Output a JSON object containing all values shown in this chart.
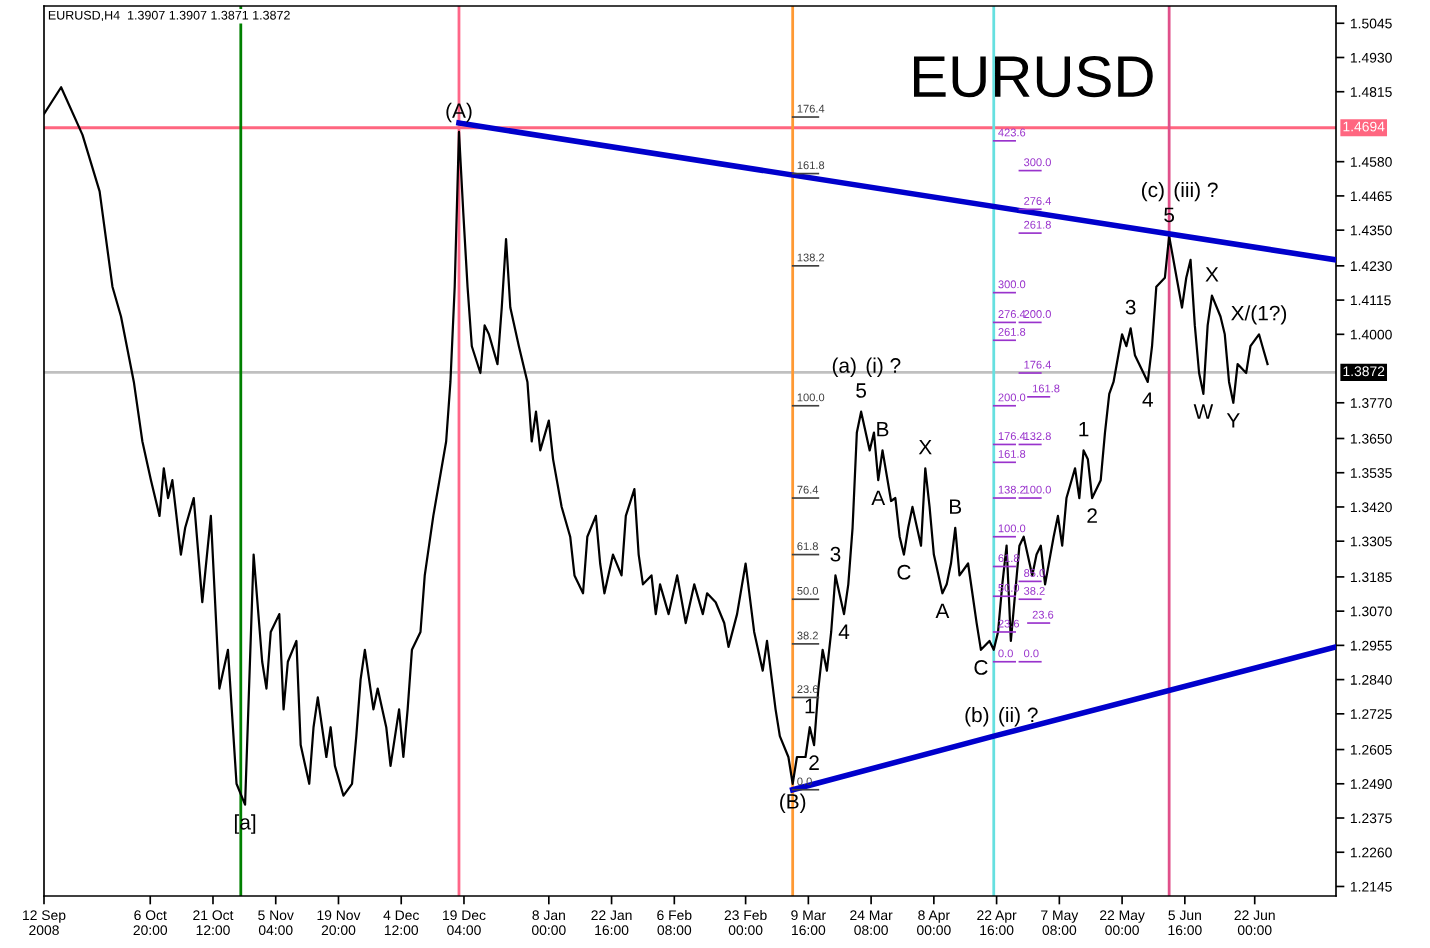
{
  "chart_data": {
    "type": "line",
    "title": "EURUSD",
    "subtitle": "EURUSD,H4  1.3907 1.3907 1.3871 1.3872",
    "series": [
      {
        "color": "#000000",
        "x": [
          "2008-09-12",
          "2008-09-16",
          "2008-09-21",
          "2008-09-25",
          "2008-09-28",
          "2008-09-30",
          "2008-10-03",
          "2008-10-05",
          "2008-10-07",
          "2008-10-09",
          "2008-10-10",
          "2008-10-11",
          "2008-10-12",
          "2008-10-14",
          "2008-10-15",
          "2008-10-17",
          "2008-10-19",
          "2008-10-21",
          "2008-10-23",
          "2008-10-25",
          "2008-10-27",
          "2008-10-29",
          "2008-10-31",
          "2008-11-02",
          "2008-11-03",
          "2008-11-04",
          "2008-11-06",
          "2008-11-07",
          "2008-11-08",
          "2008-11-10",
          "2008-11-11",
          "2008-11-13",
          "2008-11-14",
          "2008-11-15",
          "2008-11-17",
          "2008-11-18",
          "2008-11-19",
          "2008-11-21",
          "2008-11-23",
          "2008-11-24",
          "2008-11-25",
          "2008-11-26",
          "2008-11-28",
          "2008-11-29",
          "2008-12-01",
          "2008-12-02",
          "2008-12-04",
          "2008-12-05",
          "2008-12-06",
          "2008-12-07",
          "2008-12-09",
          "2008-12-10",
          "2008-12-12",
          "2008-12-15",
          "2008-12-16",
          "2008-12-17",
          "2008-12-18",
          "2008-12-19",
          "2008-12-20",
          "2008-12-21",
          "2008-12-23",
          "2008-12-24",
          "2008-12-25",
          "2008-12-27",
          "2008-12-28",
          "2008-12-29",
          "2008-12-30",
          "2009-01-01",
          "2009-01-03",
          "2009-01-04",
          "2009-01-05",
          "2009-01-06",
          "2009-01-08",
          "2009-01-09",
          "2009-01-11",
          "2009-01-13",
          "2009-01-14",
          "2009-01-16",
          "2009-01-17",
          "2009-01-19",
          "2009-01-20",
          "2009-01-21",
          "2009-01-23",
          "2009-01-25",
          "2009-01-26",
          "2009-01-28",
          "2009-01-29",
          "2009-01-30",
          "2009-02-01",
          "2009-02-02",
          "2009-02-03",
          "2009-02-05",
          "2009-02-07",
          "2009-02-09",
          "2009-02-11",
          "2009-02-13",
          "2009-02-14",
          "2009-02-16",
          "2009-02-18",
          "2009-02-19",
          "2009-02-21",
          "2009-02-23",
          "2009-02-25",
          "2009-02-27",
          "2009-02-28",
          "2009-03-02",
          "2009-03-03",
          "2009-03-05",
          "2009-03-06",
          "2009-03-07",
          "2009-03-09",
          "2009-03-10",
          "2009-03-11",
          "2009-03-12",
          "2009-03-13",
          "2009-03-14",
          "2009-03-15",
          "2009-03-16",
          "2009-03-18",
          "2009-03-19",
          "2009-03-20",
          "2009-03-21",
          "2009-03-22",
          "2009-03-24",
          "2009-03-25",
          "2009-03-26",
          "2009-03-27",
          "2009-03-29",
          "2009-03-30",
          "2009-03-31",
          "2009-04-01",
          "2009-04-02",
          "2009-04-03",
          "2009-04-05",
          "2009-04-06",
          "2009-04-07",
          "2009-04-08",
          "2009-04-10",
          "2009-04-11",
          "2009-04-12",
          "2009-04-13",
          "2009-04-14",
          "2009-04-16",
          "2009-04-17",
          "2009-04-18",
          "2009-04-19",
          "2009-04-21",
          "2009-04-22",
          "2009-04-23",
          "2009-04-24",
          "2009-04-25",
          "2009-04-26",
          "2009-04-27",
          "2009-04-28",
          "2009-04-29",
          "2009-05-01",
          "2009-05-02",
          "2009-05-03",
          "2009-05-04",
          "2009-05-06",
          "2009-05-07",
          "2009-05-08",
          "2009-05-09",
          "2009-05-11",
          "2009-05-12",
          "2009-05-13",
          "2009-05-14",
          "2009-05-15",
          "2009-05-17",
          "2009-05-18",
          "2009-05-19",
          "2009-05-20",
          "2009-05-22",
          "2009-05-23",
          "2009-05-24",
          "2009-05-25",
          "2009-05-27",
          "2009-05-28",
          "2009-05-29",
          "2009-05-30",
          "2009-06-01",
          "2009-06-02",
          "2009-06-05",
          "2009-06-06",
          "2009-06-07",
          "2009-06-08",
          "2009-06-09",
          "2009-06-10",
          "2009-06-11",
          "2009-06-12",
          "2009-06-14",
          "2009-06-15",
          "2009-06-16",
          "2009-06-17",
          "2009-06-18",
          "2009-06-20",
          "2009-06-21",
          "2009-06-23",
          "2009-06-24",
          "2009-06-25"
        ],
        "values": [
          1.474,
          1.483,
          1.467,
          1.448,
          1.416,
          1.406,
          1.384,
          1.364,
          1.351,
          1.339,
          1.355,
          1.345,
          1.351,
          1.326,
          1.335,
          1.345,
          1.31,
          1.339,
          1.281,
          1.294,
          1.249,
          1.242,
          1.326,
          1.29,
          1.281,
          1.3,
          1.306,
          1.274,
          1.29,
          1.297,
          1.262,
          1.249,
          1.268,
          1.278,
          1.258,
          1.268,
          1.255,
          1.245,
          1.249,
          1.265,
          1.284,
          1.294,
          1.274,
          1.281,
          1.268,
          1.255,
          1.274,
          1.258,
          1.274,
          1.294,
          1.3,
          1.319,
          1.339,
          1.364,
          1.384,
          1.416,
          1.468,
          1.441,
          1.416,
          1.396,
          1.387,
          1.403,
          1.4,
          1.39,
          1.409,
          1.432,
          1.409,
          1.396,
          1.384,
          1.364,
          1.374,
          1.361,
          1.371,
          1.358,
          1.342,
          1.332,
          1.319,
          1.313,
          1.332,
          1.339,
          1.323,
          1.313,
          1.326,
          1.319,
          1.339,
          1.348,
          1.326,
          1.316,
          1.319,
          1.306,
          1.316,
          1.306,
          1.319,
          1.303,
          1.316,
          1.306,
          1.313,
          1.31,
          1.303,
          1.295,
          1.306,
          1.323,
          1.3,
          1.287,
          1.297,
          1.274,
          1.265,
          1.258,
          1.249,
          1.258,
          1.258,
          1.268,
          1.262,
          1.281,
          1.294,
          1.287,
          1.3,
          1.319,
          1.306,
          1.316,
          1.335,
          1.367,
          1.374,
          1.361,
          1.367,
          1.351,
          1.361,
          1.344,
          1.345,
          1.332,
          1.326,
          1.335,
          1.342,
          1.329,
          1.355,
          1.342,
          1.326,
          1.313,
          1.316,
          1.323,
          1.335,
          1.319,
          1.323,
          1.313,
          1.303,
          1.294,
          1.297,
          1.294,
          1.3,
          1.316,
          1.329,
          1.297,
          1.313,
          1.329,
          1.332,
          1.319,
          1.326,
          1.329,
          1.316,
          1.332,
          1.339,
          1.329,
          1.345,
          1.355,
          1.345,
          1.361,
          1.358,
          1.345,
          1.351,
          1.367,
          1.38,
          1.384,
          1.4,
          1.396,
          1.402,
          1.393,
          1.387,
          1.384,
          1.396,
          1.416,
          1.419,
          1.433,
          1.409,
          1.419,
          1.425,
          1.403,
          1.387,
          1.38,
          1.403,
          1.413,
          1.406,
          1.4,
          1.384,
          1.377,
          1.39,
          1.387,
          1.396,
          1.4,
          1.395,
          1.39
        ]
      },
      {
        "color": "#0000cc",
        "x": [
          "2008-12-18",
          "2009-07-11"
        ],
        "values": [
          1.471,
          1.425
        ]
      },
      {
        "color": "#0000cc",
        "x": [
          "2009-03-06",
          "2009-04-22",
          "2009-07-11"
        ],
        "values": [
          1.247,
          1.265,
          1.295
        ]
      },
      {
        "type": "line",
        "name": "176.4",
        "color": "#404040",
        "x": [
          "2009-03-06",
          "2009-03-12"
        ],
        "values": [
          1.473,
          1.473
        ]
      },
      {
        "type": "line",
        "name": "161.8",
        "color": "#404040",
        "x": [
          "2009-03-06",
          "2009-03-12"
        ],
        "values": [
          1.454,
          1.454
        ]
      },
      {
        "type": "line",
        "name": "138.2",
        "color": "#404040",
        "x": [
          "2009-03-06",
          "2009-03-12"
        ],
        "values": [
          1.423,
          1.423
        ]
      },
      {
        "type": "line",
        "name": "100.0",
        "color": "#404040",
        "x": [
          "2009-03-06",
          "2009-03-12"
        ],
        "values": [
          1.376,
          1.376
        ]
      },
      {
        "type": "line",
        "name": "76.4",
        "color": "#404040",
        "x": [
          "2009-03-06",
          "2009-03-12"
        ],
        "values": [
          1.345,
          1.345
        ]
      },
      {
        "type": "line",
        "name": "61.8",
        "color": "#404040",
        "x": [
          "2009-03-06",
          "2009-03-12"
        ],
        "values": [
          1.326,
          1.326
        ]
      },
      {
        "type": "line",
        "name": "50.0",
        "color": "#404040",
        "x": [
          "2009-03-06",
          "2009-03-12"
        ],
        "values": [
          1.311,
          1.311
        ]
      },
      {
        "type": "line",
        "name": "38.2",
        "color": "#404040",
        "x": [
          "2009-03-06",
          "2009-03-12"
        ],
        "values": [
          1.296,
          1.296
        ]
      },
      {
        "type": "line",
        "name": "23.6",
        "color": "#404040",
        "x": [
          "2009-03-06",
          "2009-03-12"
        ],
        "values": [
          1.278,
          1.278
        ]
      },
      {
        "type": "line",
        "name": "0.0",
        "color": "#404040",
        "x": [
          "2009-03-06",
          "2009-03-12"
        ],
        "values": [
          1.247,
          1.247
        ]
      },
      {
        "type": "line",
        "name": "423.6",
        "color": "#9933cc",
        "x": [
          "2009-04-22",
          "2009-04-27"
        ],
        "values": [
          1.465,
          1.465
        ]
      },
      {
        "type": "line",
        "name": "300.0",
        "color": "#9933cc",
        "x": [
          "2009-04-22",
          "2009-04-27"
        ],
        "values": [
          1.414,
          1.414
        ]
      },
      {
        "type": "line",
        "name": "276.4",
        "color": "#9933cc",
        "x": [
          "2009-04-22",
          "2009-04-27"
        ],
        "values": [
          1.404,
          1.404
        ]
      },
      {
        "type": "line",
        "name": "261.8",
        "color": "#9933cc",
        "x": [
          "2009-04-22",
          "2009-04-27"
        ],
        "values": [
          1.398,
          1.398
        ]
      },
      {
        "type": "line",
        "name": "200.0",
        "color": "#9933cc",
        "x": [
          "2009-04-22",
          "2009-04-27"
        ],
        "values": [
          1.376,
          1.376
        ]
      },
      {
        "type": "line",
        "name": "176.4",
        "color": "#9933cc",
        "x": [
          "2009-04-22",
          "2009-04-27"
        ],
        "values": [
          1.363,
          1.363
        ]
      },
      {
        "type": "line",
        "name": "161.8",
        "color": "#9933cc",
        "x": [
          "2009-04-22",
          "2009-04-27"
        ],
        "values": [
          1.357,
          1.357
        ]
      },
      {
        "type": "line",
        "name": "138.2",
        "color": "#9933cc",
        "x": [
          "2009-04-22",
          "2009-04-27"
        ],
        "values": [
          1.345,
          1.345
        ]
      },
      {
        "type": "line",
        "name": "100.0",
        "color": "#9933cc",
        "x": [
          "2009-04-22",
          "2009-04-27"
        ],
        "values": [
          1.332,
          1.332
        ]
      },
      {
        "type": "line",
        "name": "61.8",
        "color": "#9933cc",
        "x": [
          "2009-04-22",
          "2009-04-27"
        ],
        "values": [
          1.322,
          1.322
        ]
      },
      {
        "type": "line",
        "name": "50.0",
        "color": "#9933cc",
        "x": [
          "2009-04-22",
          "2009-04-27"
        ],
        "values": [
          1.312,
          1.312
        ]
      },
      {
        "type": "line",
        "name": "23.6",
        "color": "#9933cc",
        "x": [
          "2009-04-22",
          "2009-04-27"
        ],
        "values": [
          1.3,
          1.3
        ]
      },
      {
        "type": "line",
        "name": "0.0",
        "color": "#9933cc",
        "x": [
          "2009-04-22",
          "2009-04-27"
        ],
        "values": [
          1.29,
          1.29
        ]
      },
      {
        "type": "line",
        "name": "300.0",
        "color": "#9933cc",
        "x": [
          "2009-04-28",
          "2009-05-03"
        ],
        "values": [
          1.455,
          1.455
        ]
      },
      {
        "type": "line",
        "name": "276.4",
        "color": "#9933cc",
        "x": [
          "2009-04-28",
          "2009-05-03"
        ],
        "values": [
          1.442,
          1.442
        ]
      },
      {
        "type": "line",
        "name": "261.8",
        "color": "#9933cc",
        "x": [
          "2009-04-28",
          "2009-05-03"
        ],
        "values": [
          1.434,
          1.434
        ]
      },
      {
        "type": "line",
        "name": "200.0",
        "color": "#9933cc",
        "x": [
          "2009-04-28",
          "2009-05-03"
        ],
        "values": [
          1.404,
          1.404
        ]
      },
      {
        "type": "line",
        "name": "176.4",
        "color": "#9933cc",
        "x": [
          "2009-04-28",
          "2009-05-03"
        ],
        "values": [
          1.387,
          1.387
        ]
      },
      {
        "type": "line",
        "name": "161.8",
        "color": "#9933cc",
        "x": [
          "2009-04-30",
          "2009-05-05"
        ],
        "values": [
          1.379,
          1.379
        ]
      },
      {
        "type": "line",
        "name": "132.8",
        "color": "#9933cc",
        "x": [
          "2009-04-28",
          "2009-05-03"
        ],
        "values": [
          1.363,
          1.363
        ]
      },
      {
        "type": "line",
        "name": "100.0",
        "color": "#9933cc",
        "x": [
          "2009-04-28",
          "2009-05-03"
        ],
        "values": [
          1.345,
          1.345
        ]
      },
      {
        "type": "line",
        "name": "85.0",
        "color": "#9933cc",
        "x": [
          "2009-04-28",
          "2009-05-03"
        ],
        "values": [
          1.317,
          1.317
        ]
      },
      {
        "type": "line",
        "name": "38.2",
        "color": "#9933cc",
        "x": [
          "2009-04-28",
          "2009-05-03"
        ],
        "values": [
          1.311,
          1.311
        ]
      },
      {
        "type": "line",
        "name": "23.6",
        "color": "#9933cc",
        "x": [
          "2009-04-30",
          "2009-05-05"
        ],
        "values": [
          1.303,
          1.303
        ]
      },
      {
        "type": "line",
        "name": "0.0",
        "color": "#9933cc",
        "x": [
          "2009-04-28",
          "2009-05-03"
        ],
        "values": [
          1.29,
          1.29
        ]
      }
    ],
    "annotations": [
      {
        "text": "(A)",
        "x": "2008-12-18",
        "y": 1.468
      },
      {
        "text": "[a]",
        "x": "2008-10-29",
        "y": 1.242
      },
      {
        "text": "(B)",
        "x": "2009-03-06",
        "y": 1.249
      },
      {
        "text": "1",
        "x": "2009-03-10",
        "y": 1.268
      },
      {
        "text": "2",
        "x": "2009-03-11",
        "y": 1.262
      },
      {
        "text": "3",
        "x": "2009-03-16",
        "y": 1.319
      },
      {
        "text": "4",
        "x": "2009-03-18",
        "y": 1.306
      },
      {
        "text": "5",
        "x": "2009-03-22",
        "y": 1.374
      },
      {
        "text": "(a)",
        "x": "2009-03-22",
        "y": 1.374
      },
      {
        "text": "(i) ?",
        "x": "2009-03-22",
        "y": 1.374
      },
      {
        "text": "A",
        "x": "2009-03-26",
        "y": 1.351
      },
      {
        "text": "B",
        "x": "2009-03-27",
        "y": 1.361
      },
      {
        "text": "C",
        "x": "2009-04-01",
        "y": 1.326
      },
      {
        "text": "X",
        "x": "2009-04-06",
        "y": 1.355
      },
      {
        "text": "A",
        "x": "2009-04-10",
        "y": 1.313
      },
      {
        "text": "B",
        "x": "2009-04-13",
        "y": 1.335
      },
      {
        "text": "C",
        "x": "2009-04-19",
        "y": 1.294
      },
      {
        "text": "(b)",
        "x": "2009-04-22",
        "y": 1.265
      },
      {
        "text": "(ii) ?",
        "x": "2009-04-22",
        "y": 1.265
      },
      {
        "text": "1",
        "x": "2009-05-13",
        "y": 1.361
      },
      {
        "text": "2",
        "x": "2009-05-15",
        "y": 1.345
      },
      {
        "text": "3",
        "x": "2009-05-24",
        "y": 1.402
      },
      {
        "text": "4",
        "x": "2009-05-28",
        "y": 1.384
      },
      {
        "text": "5",
        "x": "2009-06-02",
        "y": 1.433
      },
      {
        "text": "(c)",
        "x": "2009-06-02",
        "y": 1.433
      },
      {
        "text": "(iii) ?",
        "x": "2009-06-02",
        "y": 1.433
      },
      {
        "text": "W",
        "x": "2009-06-10",
        "y": 1.38
      },
      {
        "text": "X",
        "x": "2009-06-12",
        "y": 1.413
      },
      {
        "text": "Y",
        "x": "2009-06-17",
        "y": 1.377
      },
      {
        "text": "X/(1?)",
        "x": "2009-06-23",
        "y": 1.4
      }
    ],
    "xlim": [
      "2008-09-12",
      "2009-07-11"
    ],
    "xticks": [
      {
        "value": "2008-09-12",
        "label": "12 Sep 2008"
      },
      {
        "value": "2008-10-06T20:00",
        "label": "6 Oct 20:00"
      },
      {
        "value": "2008-10-21T12:00",
        "label": "21 Oct 12:00"
      },
      {
        "value": "2008-11-05T04:00",
        "label": "5 Nov 04:00"
      },
      {
        "value": "2008-11-19T20:00",
        "label": "19 Nov 20:00"
      },
      {
        "value": "2008-12-04T12:00",
        "label": "4 Dec 12:00"
      },
      {
        "value": "2008-12-19T04:00",
        "label": "19 Dec 04:00"
      },
      {
        "value": "2009-01-08T00:00",
        "label": "8 Jan 00:00"
      },
      {
        "value": "2009-01-22T16:00",
        "label": "22 Jan 16:00"
      },
      {
        "value": "2009-02-06T08:00",
        "label": "6 Feb 08:00"
      },
      {
        "value": "2009-02-23T00:00",
        "label": "23 Feb 00:00"
      },
      {
        "value": "2009-03-09T16:00",
        "label": "9 Mar 16:00"
      },
      {
        "value": "2009-03-24T08:00",
        "label": "24 Mar 08:00"
      },
      {
        "value": "2009-04-08T00:00",
        "label": "8 Apr 00:00"
      },
      {
        "value": "2009-04-22T16:00",
        "label": "22 Apr 16:00"
      },
      {
        "value": "2009-05-07T08:00",
        "label": "7 May 08:00"
      },
      {
        "value": "2009-05-22T00:00",
        "label": "22 May 00:00"
      },
      {
        "value": "2009-06-05T16:00",
        "label": "5 Jun 16:00"
      },
      {
        "value": "2009-06-22T00:00",
        "label": "22 Jun 00:00"
      }
    ],
    "ylim": [
      1.2113,
      1.5103
    ],
    "yticks": [
      {
        "value": 1.5045,
        "label": "1.5045"
      },
      {
        "value": 1.493,
        "label": "1.4930"
      },
      {
        "value": 1.4815,
        "label": "1.4815"
      },
      {
        "value": 1.458,
        "label": "1.4580"
      },
      {
        "value": 1.4465,
        "label": "1.4465"
      },
      {
        "value": 1.435,
        "label": "1.4350"
      },
      {
        "value": 1.423,
        "label": "1.4230"
      },
      {
        "value": 1.4115,
        "label": "1.4115"
      },
      {
        "value": 1.4,
        "label": "1.4000"
      },
      {
        "value": 1.377,
        "label": "1.3770"
      },
      {
        "value": 1.365,
        "label": "1.3650"
      },
      {
        "value": 1.3535,
        "label": "1.3535"
      },
      {
        "value": 1.342,
        "label": "1.3420"
      },
      {
        "value": 1.3305,
        "label": "1.3305"
      },
      {
        "value": 1.3185,
        "label": "1.3185"
      },
      {
        "value": 1.307,
        "label": "1.3070"
      },
      {
        "value": 1.2955,
        "label": "1.2955"
      },
      {
        "value": 1.284,
        "label": "1.2840"
      },
      {
        "value": 1.2725,
        "label": "1.2725"
      },
      {
        "value": 1.2605,
        "label": "1.2605"
      },
      {
        "value": 1.249,
        "label": "1.2490"
      },
      {
        "value": 1.2375,
        "label": "1.2375"
      },
      {
        "value": 1.226,
        "label": "1.2260"
      },
      {
        "value": 1.2145,
        "label": "1.2145"
      }
    ],
    "ref_lines": [
      {
        "axis": "y",
        "value": 1.4694,
        "label": "1.4694",
        "color": "#ff6680"
      },
      {
        "axis": "y",
        "value": 1.3872,
        "label": "1.3872",
        "color": "#c0c0c0"
      },
      {
        "axis": "x",
        "value": "2008-10-28",
        "color": "#008000"
      },
      {
        "axis": "x",
        "value": "2008-12-18",
        "color": "#ff6688"
      },
      {
        "axis": "x",
        "value": "2009-03-06",
        "color": "#ff9933"
      },
      {
        "axis": "x",
        "value": "2009-04-22",
        "color": "#66e0e0"
      },
      {
        "axis": "x",
        "value": "2009-06-02",
        "color": "#e0508a"
      }
    ],
    "grid": false,
    "legend": false,
    "marker": "none",
    "line_style": "solid"
  }
}
